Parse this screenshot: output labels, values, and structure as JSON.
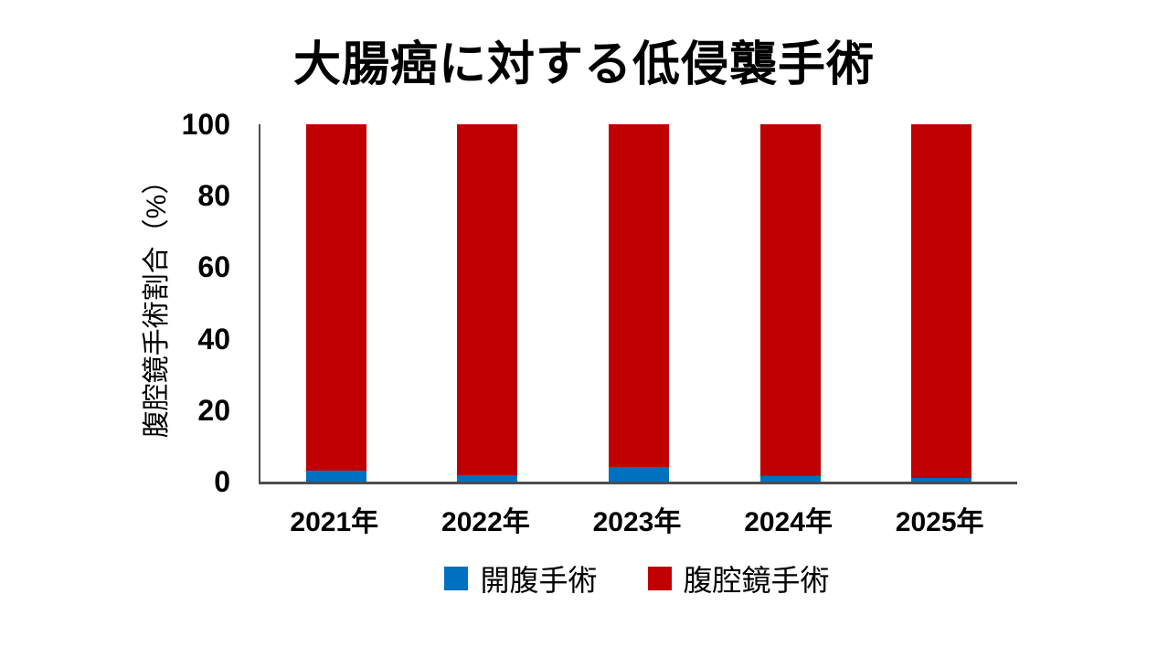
{
  "chart_data": {
    "type": "bar",
    "stacked": true,
    "title": "大腸癌に対する低侵襲手術",
    "ylabel": "腹腔鏡手術割合（%）",
    "xlabel": "",
    "categories": [
      "2021年",
      "2022年",
      "2023年",
      "2024年",
      "2025年"
    ],
    "series": [
      {
        "name": "開腹手術",
        "color": "#0070C0",
        "values": [
          3,
          1.8,
          4,
          1.5,
          1
        ]
      },
      {
        "name": "腹腔鏡手術",
        "color": "#C00000",
        "values": [
          97,
          98.2,
          96,
          98.5,
          99
        ]
      }
    ],
    "ylim": [
      0,
      100
    ],
    "yticks": [
      0,
      20,
      40,
      60,
      80,
      100
    ],
    "grid": false,
    "legend_position": "bottom",
    "axis_color": "#4D4D4D",
    "text_color": "#000000",
    "background_color": "#FFFFFF"
  }
}
